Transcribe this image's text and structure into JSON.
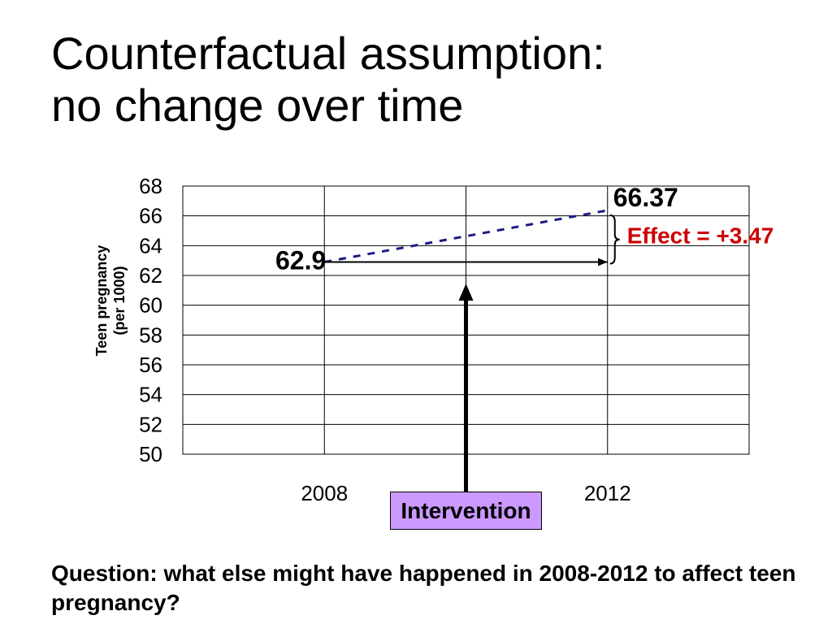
{
  "slide": {
    "title": [
      "Counterfactual assumption:",
      "no change over time"
    ],
    "question": [
      "Question: what else might have happened in 2008-2012 to affect teen",
      "pregnancy?"
    ]
  },
  "colors": {
    "background": "#ffffff",
    "text": "#000000",
    "effect_label": "#cc0000",
    "intervention_box": "#cc99ff"
  },
  "chart_data": {
    "type": "line",
    "ylabel": [
      "Teen pregnancy",
      "(per 1000)"
    ],
    "x_ticks": [
      2008,
      2012
    ],
    "xlim": [
      2006,
      2014
    ],
    "ylim": [
      50,
      68
    ],
    "y_ticks": [
      50,
      52,
      54,
      56,
      58,
      60,
      62,
      64,
      66,
      68
    ],
    "grid": true,
    "series": [
      {
        "x": [
          2008,
          2012
        ],
        "values": [
          62.9,
          66.37
        ],
        "color": "#1b1b84",
        "dashed": true
      },
      {
        "x": [
          2008,
          2012
        ],
        "values": [
          62.9,
          62.9
        ],
        "color": "#000000",
        "arrow": true
      }
    ],
    "data_labels": [
      {
        "text": "62.9",
        "x": 2008,
        "y": 62.9
      },
      {
        "text": "66.37",
        "x": 2012,
        "y": 66.37
      }
    ],
    "effect_annotation": {
      "text": "Effect = +3.47",
      "x": 2012,
      "from": 62.9,
      "to": 66.37
    },
    "intervention_annotation": {
      "text": "Intervention",
      "x": 2010
    }
  }
}
